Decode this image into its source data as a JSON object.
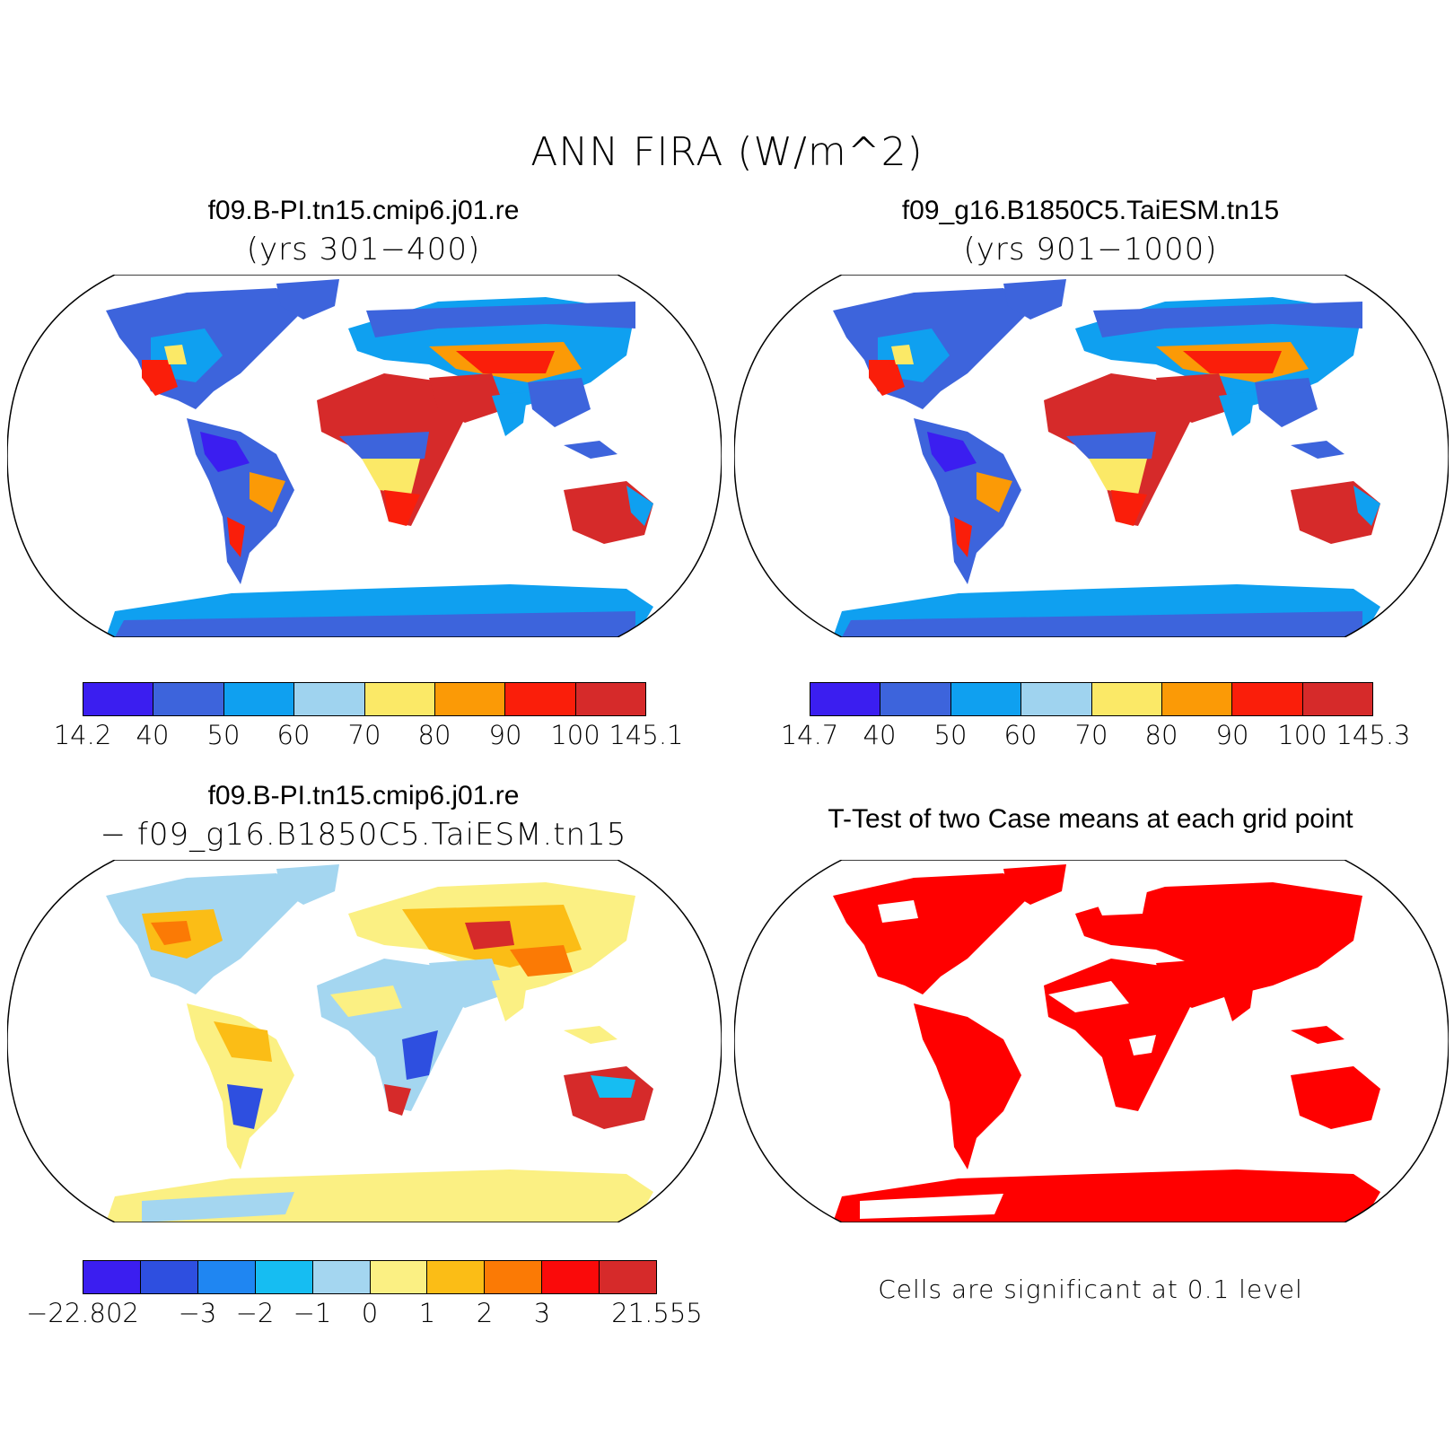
{
  "title": "ANN FIRA (W/m^2)",
  "panels": {
    "top_left": {
      "case": "f09.B-PI.tn15.cmip6.j01.re",
      "years": "(yrs 301−400)",
      "colorbar": {
        "labels": [
          "14.2",
          "40",
          "50",
          "60",
          "70",
          "80",
          "90",
          "100",
          "145.1"
        ],
        "colors": [
          "#3b1ef0",
          "#3d64dc",
          "#0fa0f0",
          "#9fd3ef",
          "#fbe967",
          "#fb9a06",
          "#fa1e0a",
          "#d62a2a"
        ]
      }
    },
    "top_right": {
      "case": "f09_g16.B1850C5.TaiESM.tn15",
      "years": "(yrs 901−1000)",
      "colorbar": {
        "labels": [
          "14.7",
          "40",
          "50",
          "60",
          "70",
          "80",
          "90",
          "100",
          "145.3"
        ],
        "colors": [
          "#3b1ef0",
          "#3d64dc",
          "#0fa0f0",
          "#9fd3ef",
          "#fbe967",
          "#fb9a06",
          "#fa1e0a",
          "#d62a2a"
        ]
      }
    },
    "bottom_left": {
      "case": "f09.B-PI.tn15.cmip6.j01.re",
      "diff": "− f09_g16.B1850C5.TaiESM.tn15",
      "colorbar": {
        "labels": [
          "−22.802",
          "−3",
          "−2",
          "−1",
          "0",
          "1",
          "2",
          "3",
          "21.555"
        ],
        "colors": [
          "#3b1ef0",
          "#2e4fe0",
          "#1f86f2",
          "#16bdf2",
          "#a4d6f0",
          "#fbf083",
          "#fbbd16",
          "#fb7a05",
          "#fa0a0a",
          "#d62a2a"
        ]
      }
    },
    "bottom_right": {
      "title": "T-Test of two Case means at each grid point",
      "note": "Cells are significant at 0.1 level",
      "sig_color": "#ff0000"
    }
  }
}
